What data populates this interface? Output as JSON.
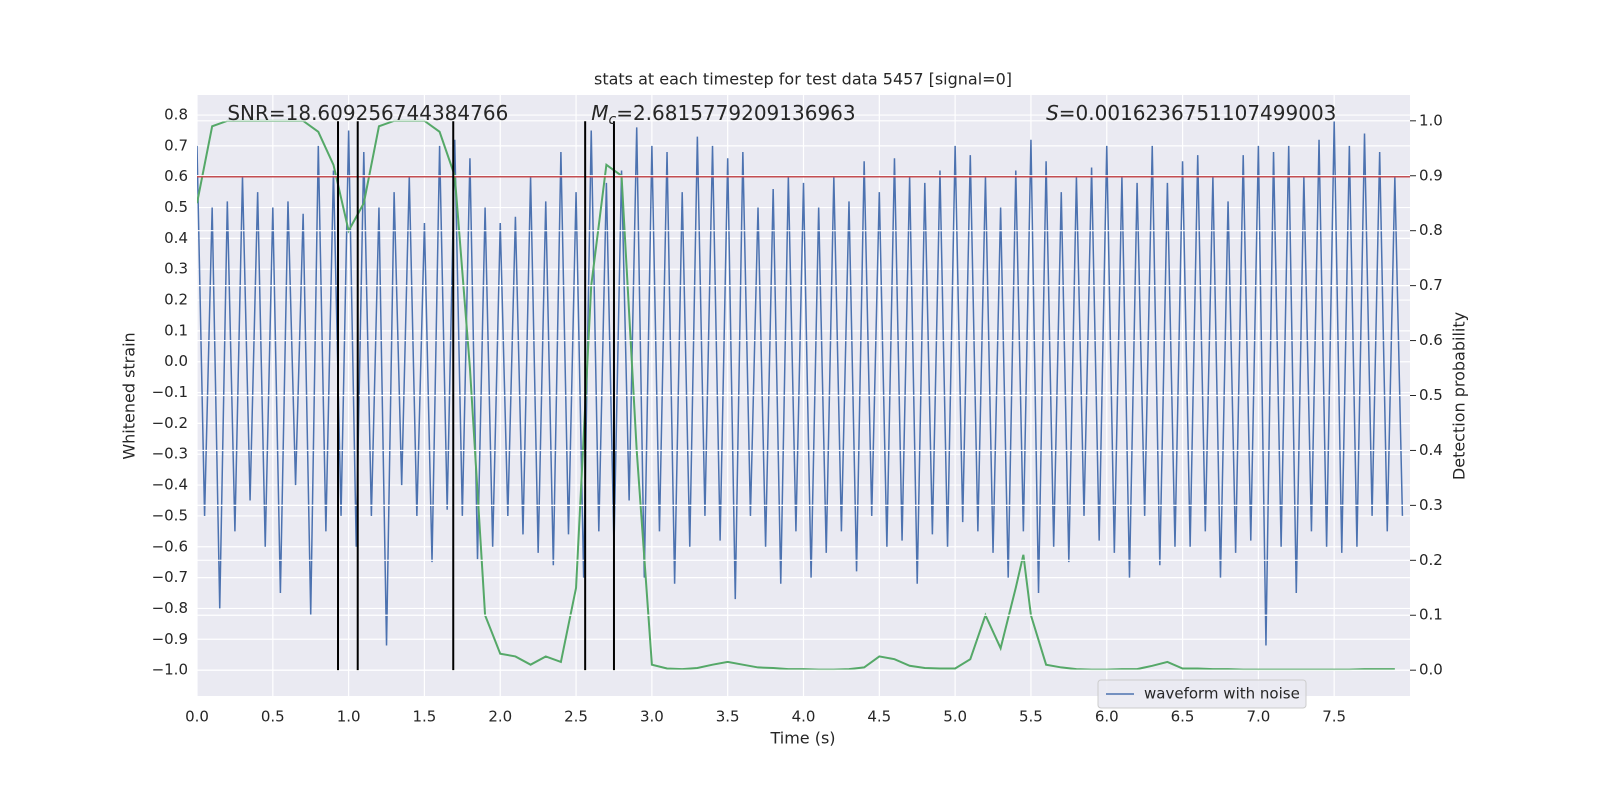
{
  "chart_data": {
    "type": "line",
    "title": "stats at each timestep for test data 5457 [signal=0]",
    "xlabel": "Time (s)",
    "ylabel": "Whitened strain",
    "y2label": "Detection probability",
    "xlim": [
      0,
      8
    ],
    "ylim": [
      -1.084,
      0.865
    ],
    "y2lim": [
      -0.047,
      1.047
    ],
    "xticks": [
      {
        "value": 0,
        "label": "0.0"
      },
      {
        "value": 0.5,
        "label": "0.5"
      },
      {
        "value": 1,
        "label": "1.0"
      },
      {
        "value": 1.5,
        "label": "1.5"
      },
      {
        "value": 2,
        "label": "2.0"
      },
      {
        "value": 2.5,
        "label": "2.5"
      },
      {
        "value": 3,
        "label": "3.0"
      },
      {
        "value": 3.5,
        "label": "3.5"
      },
      {
        "value": 4,
        "label": "4.0"
      },
      {
        "value": 4.5,
        "label": "4.5"
      },
      {
        "value": 5,
        "label": "5.0"
      },
      {
        "value": 5.5,
        "label": "5.5"
      },
      {
        "value": 6,
        "label": "6.0"
      },
      {
        "value": 6.5,
        "label": "6.5"
      },
      {
        "value": 7,
        "label": "7.0"
      },
      {
        "value": 7.5,
        "label": "7.5"
      }
    ],
    "yticks": [
      {
        "value": -1,
        "label": "−1.0"
      },
      {
        "value": -0.9,
        "label": "−0.9"
      },
      {
        "value": -0.8,
        "label": "−0.8"
      },
      {
        "value": -0.7,
        "label": "−0.7"
      },
      {
        "value": -0.6,
        "label": "−0.6"
      },
      {
        "value": -0.5,
        "label": "−0.5"
      },
      {
        "value": -0.4,
        "label": "−0.4"
      },
      {
        "value": -0.3,
        "label": "−0.3"
      },
      {
        "value": -0.2,
        "label": "−0.2"
      },
      {
        "value": -0.1,
        "label": "−0.1"
      },
      {
        "value": 0,
        "label": "0.0"
      },
      {
        "value": 0.1,
        "label": "0.1"
      },
      {
        "value": 0.2,
        "label": "0.2"
      },
      {
        "value": 0.3,
        "label": "0.3"
      },
      {
        "value": 0.4,
        "label": "0.4"
      },
      {
        "value": 0.5,
        "label": "0.5"
      },
      {
        "value": 0.6,
        "label": "0.6"
      },
      {
        "value": 0.7,
        "label": "0.7"
      },
      {
        "value": 0.8,
        "label": "0.8"
      }
    ],
    "y2ticks": [
      {
        "value": 0,
        "label": "0.0"
      },
      {
        "value": 0.1,
        "label": "0.1"
      },
      {
        "value": 0.2,
        "label": "0.2"
      },
      {
        "value": 0.3,
        "label": "0.3"
      },
      {
        "value": 0.4,
        "label": "0.4"
      },
      {
        "value": 0.5,
        "label": "0.5"
      },
      {
        "value": 0.6,
        "label": "0.6"
      },
      {
        "value": 0.7,
        "label": "0.7"
      },
      {
        "value": 0.8,
        "label": "0.8"
      },
      {
        "value": 0.9,
        "label": "0.9"
      },
      {
        "value": 1,
        "label": "1.0"
      }
    ],
    "grid": true,
    "legend": "lower right",
    "series": [
      {
        "name": "waveform with noise",
        "color": "#4c72b0",
        "x": [
          0,
          0.05,
          0.1,
          0.15,
          0.2,
          0.25,
          0.3,
          0.35,
          0.4,
          0.45,
          0.5,
          0.55,
          0.6,
          0.65,
          0.7,
          0.75,
          0.8,
          0.85,
          0.9,
          0.95,
          1,
          1.05,
          1.1,
          1.15,
          1.2,
          1.25,
          1.3,
          1.35,
          1.4,
          1.45,
          1.5,
          1.55,
          1.6,
          1.65,
          1.7,
          1.75,
          1.8,
          1.85,
          1.9,
          1.95,
          2,
          2.05,
          2.1,
          2.15,
          2.2,
          2.25,
          2.3,
          2.35,
          2.4,
          2.45,
          2.5,
          2.55,
          2.6,
          2.65,
          2.7,
          2.75,
          2.8,
          2.85,
          2.9,
          2.95,
          3,
          3.05,
          3.1,
          3.15,
          3.2,
          3.25,
          3.3,
          3.35,
          3.4,
          3.45,
          3.5,
          3.55,
          3.6,
          3.65,
          3.7,
          3.75,
          3.8,
          3.85,
          3.9,
          3.95,
          4,
          4.05,
          4.1,
          4.15,
          4.2,
          4.25,
          4.3,
          4.35,
          4.4,
          4.45,
          4.5,
          4.55,
          4.6,
          4.65,
          4.7,
          4.75,
          4.8,
          4.85,
          4.9,
          4.95,
          5,
          5.05,
          5.1,
          5.15,
          5.2,
          5.25,
          5.3,
          5.35,
          5.4,
          5.45,
          5.5,
          5.55,
          5.6,
          5.65,
          5.7,
          5.75,
          5.8,
          5.85,
          5.9,
          5.95,
          6,
          6.05,
          6.1,
          6.15,
          6.2,
          6.25,
          6.3,
          6.35,
          6.4,
          6.45,
          6.5,
          6.55,
          6.6,
          6.65,
          6.7,
          6.75,
          6.8,
          6.85,
          6.9,
          6.95,
          7,
          7.05,
          7.1,
          7.15,
          7.2,
          7.25,
          7.3,
          7.35,
          7.4,
          7.45,
          7.5,
          7.55,
          7.6,
          7.65,
          7.7,
          7.75,
          7.8,
          7.85,
          7.9,
          7.95
        ],
        "values": [
          0.7,
          -0.5,
          0.5,
          -0.8,
          0.52,
          -0.55,
          0.6,
          -0.45,
          0.55,
          -0.6,
          0.5,
          -0.75,
          0.52,
          -0.4,
          0.48,
          -0.82,
          0.7,
          -0.55,
          0.62,
          -0.5,
          0.75,
          -0.6,
          0.68,
          -0.5,
          0.5,
          -0.92,
          0.55,
          -0.4,
          0.6,
          -0.5,
          0.45,
          -0.65,
          0.7,
          -0.48,
          0.72,
          -0.5,
          0.66,
          -0.64,
          0.5,
          -0.6,
          0.45,
          -0.5,
          0.47,
          -0.56,
          0.6,
          -0.62,
          0.52,
          -0.66,
          0.68,
          -0.56,
          0.55,
          -0.7,
          0.75,
          -0.55,
          0.58,
          -0.6,
          0.62,
          -0.45,
          0.76,
          -0.7,
          0.7,
          -0.55,
          0.68,
          -0.72,
          0.55,
          -0.6,
          0.73,
          -0.5,
          0.7,
          -0.58,
          0.66,
          -0.77,
          0.68,
          -0.5,
          0.5,
          -0.6,
          0.56,
          -0.72,
          0.6,
          -0.55,
          0.58,
          -0.7,
          0.5,
          -0.62,
          0.6,
          -0.55,
          0.52,
          -0.68,
          0.65,
          -0.5,
          0.55,
          -0.6,
          0.66,
          -0.58,
          0.6,
          -0.72,
          0.58,
          -0.56,
          0.62,
          -0.6,
          0.7,
          -0.52,
          0.67,
          -0.55,
          0.6,
          -0.62,
          0.5,
          -0.7,
          0.62,
          -0.55,
          0.72,
          -0.75,
          0.65,
          -0.6,
          0.55,
          -0.65,
          0.6,
          -0.5,
          0.63,
          -0.58,
          0.7,
          -0.62,
          0.6,
          -0.7,
          0.58,
          -0.5,
          0.7,
          -0.66,
          0.58,
          -0.6,
          0.65,
          -0.6,
          0.67,
          -0.55,
          0.6,
          -0.7,
          0.52,
          -0.62,
          0.67,
          -0.58,
          0.7,
          -0.92,
          0.68,
          -0.6,
          0.7,
          -0.75,
          0.6,
          -0.55,
          0.72,
          -0.6,
          0.78,
          -0.62,
          0.7,
          -0.6,
          0.74,
          -0.5,
          0.68,
          -0.55,
          0.6,
          -0.5
        ]
      },
      {
        "color": "#55a868",
        "axis": "y2",
        "x": [
          0,
          0.1,
          0.2,
          0.3,
          0.4,
          0.5,
          0.6,
          0.7,
          0.8,
          0.9,
          1,
          1.1,
          1.2,
          1.3,
          1.4,
          1.5,
          1.6,
          1.7,
          1.8,
          1.9,
          2,
          2.1,
          2.2,
          2.3,
          2.4,
          2.5,
          2.6,
          2.7,
          2.8,
          2.9,
          3,
          3.1,
          3.2,
          3.3,
          3.4,
          3.5,
          3.6,
          3.7,
          3.8,
          3.9,
          4,
          4.1,
          4.2,
          4.3,
          4.4,
          4.5,
          4.6,
          4.7,
          4.8,
          4.9,
          5,
          5.1,
          5.2,
          5.3,
          5.4,
          5.45,
          5.5,
          5.6,
          5.7,
          5.8,
          5.9,
          6,
          6.1,
          6.2,
          6.3,
          6.4,
          6.5,
          6.6,
          6.7,
          6.8,
          6.9,
          7,
          7.1,
          7.2,
          7.3,
          7.4,
          7.5,
          7.6,
          7.7,
          7.8,
          7.9
        ],
        "values": [
          0.85,
          0.99,
          1,
          1,
          1,
          1,
          1,
          1,
          0.98,
          0.92,
          0.8,
          0.85,
          0.99,
          1,
          1,
          1,
          0.98,
          0.9,
          0.55,
          0.1,
          0.03,
          0.025,
          0.01,
          0.025,
          0.015,
          0.15,
          0.7,
          0.92,
          0.9,
          0.4,
          0.01,
          0.003,
          0.002,
          0.004,
          0.01,
          0.015,
          0.01,
          0.005,
          0.004,
          0.002,
          0.002,
          0.001,
          0.001,
          0.002,
          0.005,
          0.025,
          0.02,
          0.008,
          0.004,
          0.003,
          0.003,
          0.02,
          0.1,
          0.04,
          0.15,
          0.21,
          0.1,
          0.01,
          0.005,
          0.002,
          0.001,
          0.001,
          0.002,
          0.002,
          0.008,
          0.015,
          0.003,
          0.003,
          0.002,
          0.002,
          0.001,
          0.001,
          0.001,
          0.001,
          0.001,
          0.001,
          0.001,
          0.001,
          0.002,
          0.002,
          0.002
        ]
      }
    ],
    "hline": {
      "y": 0.6,
      "color": "#c44e52"
    },
    "vlines": {
      "x": [
        0.93,
        1.06,
        1.69,
        2.56,
        2.75
      ],
      "ymin": -1.0,
      "ymax": 0.78,
      "color": "#000000"
    },
    "annotations": [
      {
        "text": "SNR=18.609256744384766",
        "x": 0.2
      },
      {
        "symbol": "M",
        "subscript": "c",
        "text": "=2.6815779209136963",
        "x": 2.6
      },
      {
        "symbol": "S",
        "text": "=0.0016236751107499003",
        "x": 5.6
      }
    ]
  }
}
